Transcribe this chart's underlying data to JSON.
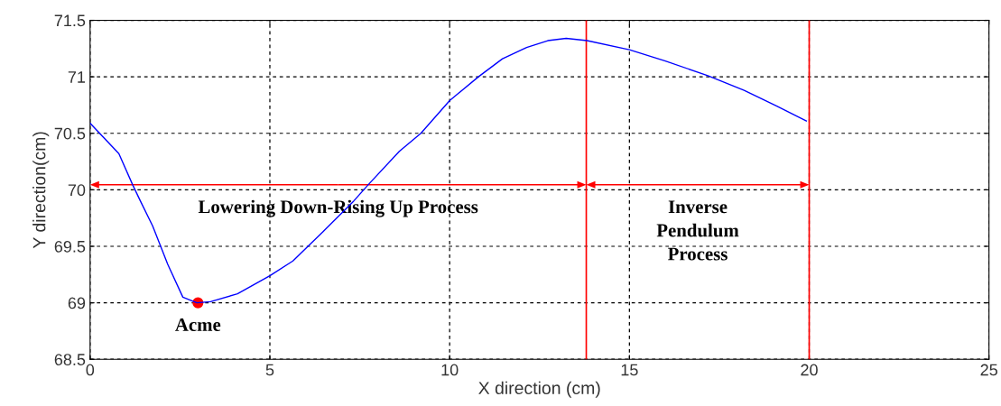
{
  "chart_data": {
    "type": "line",
    "xlabel": "X direction (cm)",
    "ylabel": "Y direction(cm)",
    "xlim": [
      0,
      25
    ],
    "xticks": [
      0,
      5,
      10,
      15,
      20,
      25
    ],
    "ylim": [
      68.5,
      71.5
    ],
    "yticks": [
      68.5,
      69,
      69.5,
      70,
      70.5,
      71,
      71.5
    ],
    "grid": true,
    "marker": "none",
    "line_style": "solid",
    "series": [
      {
        "color": "#0000ff",
        "x": [
          0,
          0.8,
          1.19,
          1.4,
          1.74,
          2.16,
          2.58,
          2.97,
          3.35,
          4.1,
          5.0,
          5.64,
          6.48,
          7.33,
          7.75,
          8.6,
          9.2,
          10,
          10.8,
          11.47,
          12.14,
          12.73,
          13.24,
          13.82,
          15.0,
          16.0,
          17.18,
          18.19,
          19.1,
          19.92
        ],
        "values": [
          70.59,
          70.32,
          70.04,
          69.9,
          69.68,
          69.34,
          69.05,
          69.0,
          69.01,
          69.08,
          69.24,
          69.37,
          69.63,
          69.9,
          70.05,
          70.34,
          70.5,
          70.79,
          71.0,
          71.16,
          71.26,
          71.32,
          71.34,
          71.32,
          71.24,
          71.14,
          71.01,
          70.88,
          70.74,
          70.61
        ]
      },
      {
        "type": "scatter",
        "marker": "circle",
        "color": "#ff0000",
        "x": [
          3
        ],
        "values": [
          69
        ]
      }
    ],
    "ref_lines": [
      {
        "axis": "x",
        "value": 13.8,
        "color": "#ff0000"
      },
      {
        "axis": "x",
        "value": 20,
        "color": "#ff0000"
      }
    ],
    "annotations": [
      {
        "text": "Acme",
        "x": 3,
        "y": 69
      },
      "Lowering Down-Rising Up Process",
      "Inverse\nPendulum\nProcess"
    ]
  }
}
